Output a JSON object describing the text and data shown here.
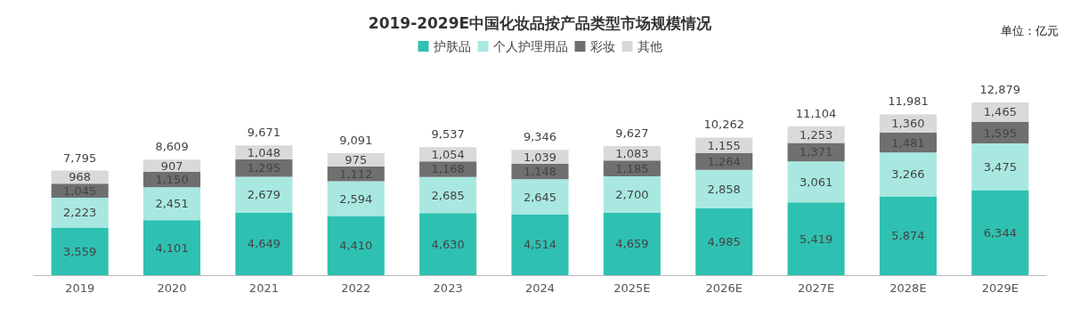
{
  "chart_data": {
    "type": "bar",
    "title": "2019-2029E中国化妆品按产品类型市场规模情况",
    "annotations": [
      "单位：亿元"
    ],
    "categories": [
      "2019",
      "2020",
      "2021",
      "2022",
      "2023",
      "2024",
      "2025E",
      "2026E",
      "2027E",
      "2028E",
      "2029E"
    ],
    "series": [
      {
        "name": "护肤品",
        "color": "#2ec1b1",
        "values": [
          3559,
          4101,
          4649,
          4410,
          4630,
          4514,
          4659,
          4985,
          5419,
          5874,
          6344
        ],
        "value_labels": [
          "3,559",
          "4,101",
          "4,649",
          "4,410",
          "4,630",
          "4,514",
          "4,659",
          "4,985",
          "5,419",
          "5,874",
          "6,344"
        ]
      },
      {
        "name": "个人护理用品",
        "color": "#a8e8e0",
        "values": [
          2223,
          2451,
          2679,
          2594,
          2685,
          2645,
          2700,
          2858,
          3061,
          3266,
          3475
        ],
        "value_labels": [
          "2,223",
          "2,451",
          "2,679",
          "2,594",
          "2,685",
          "2,645",
          "2,700",
          "2,858",
          "3,061",
          "3,266",
          "3,475"
        ]
      },
      {
        "name": "彩妆",
        "color": "#6f6f6f",
        "values": [
          1045,
          1150,
          1295,
          1112,
          1168,
          1148,
          1185,
          1264,
          1371,
          1481,
          1595
        ],
        "value_labels": [
          "1,045",
          "1,150",
          "1,295",
          "1,112",
          "1,168",
          "1,148",
          "1,185",
          "1,264",
          "1,371",
          "1,481",
          "1,595"
        ]
      },
      {
        "name": "其他",
        "color": "#d9d9d9",
        "values": [
          968,
          907,
          1048,
          975,
          1054,
          1039,
          1083,
          1155,
          1253,
          1360,
          1465
        ],
        "value_labels": [
          "968",
          "907",
          "1,048",
          "975",
          "1,054",
          "1,039",
          "1,083",
          "1,155",
          "1,253",
          "1,360",
          "1,465"
        ]
      }
    ],
    "stacked": true,
    "totals": [
      "7,795",
      "8,609",
      "9,671",
      "9,091",
      "9,537",
      "9,346",
      "9,627",
      "10,262",
      "11,104",
      "11,981",
      "12,879"
    ],
    "legend": "top",
    "tick_labels": "x"
  }
}
